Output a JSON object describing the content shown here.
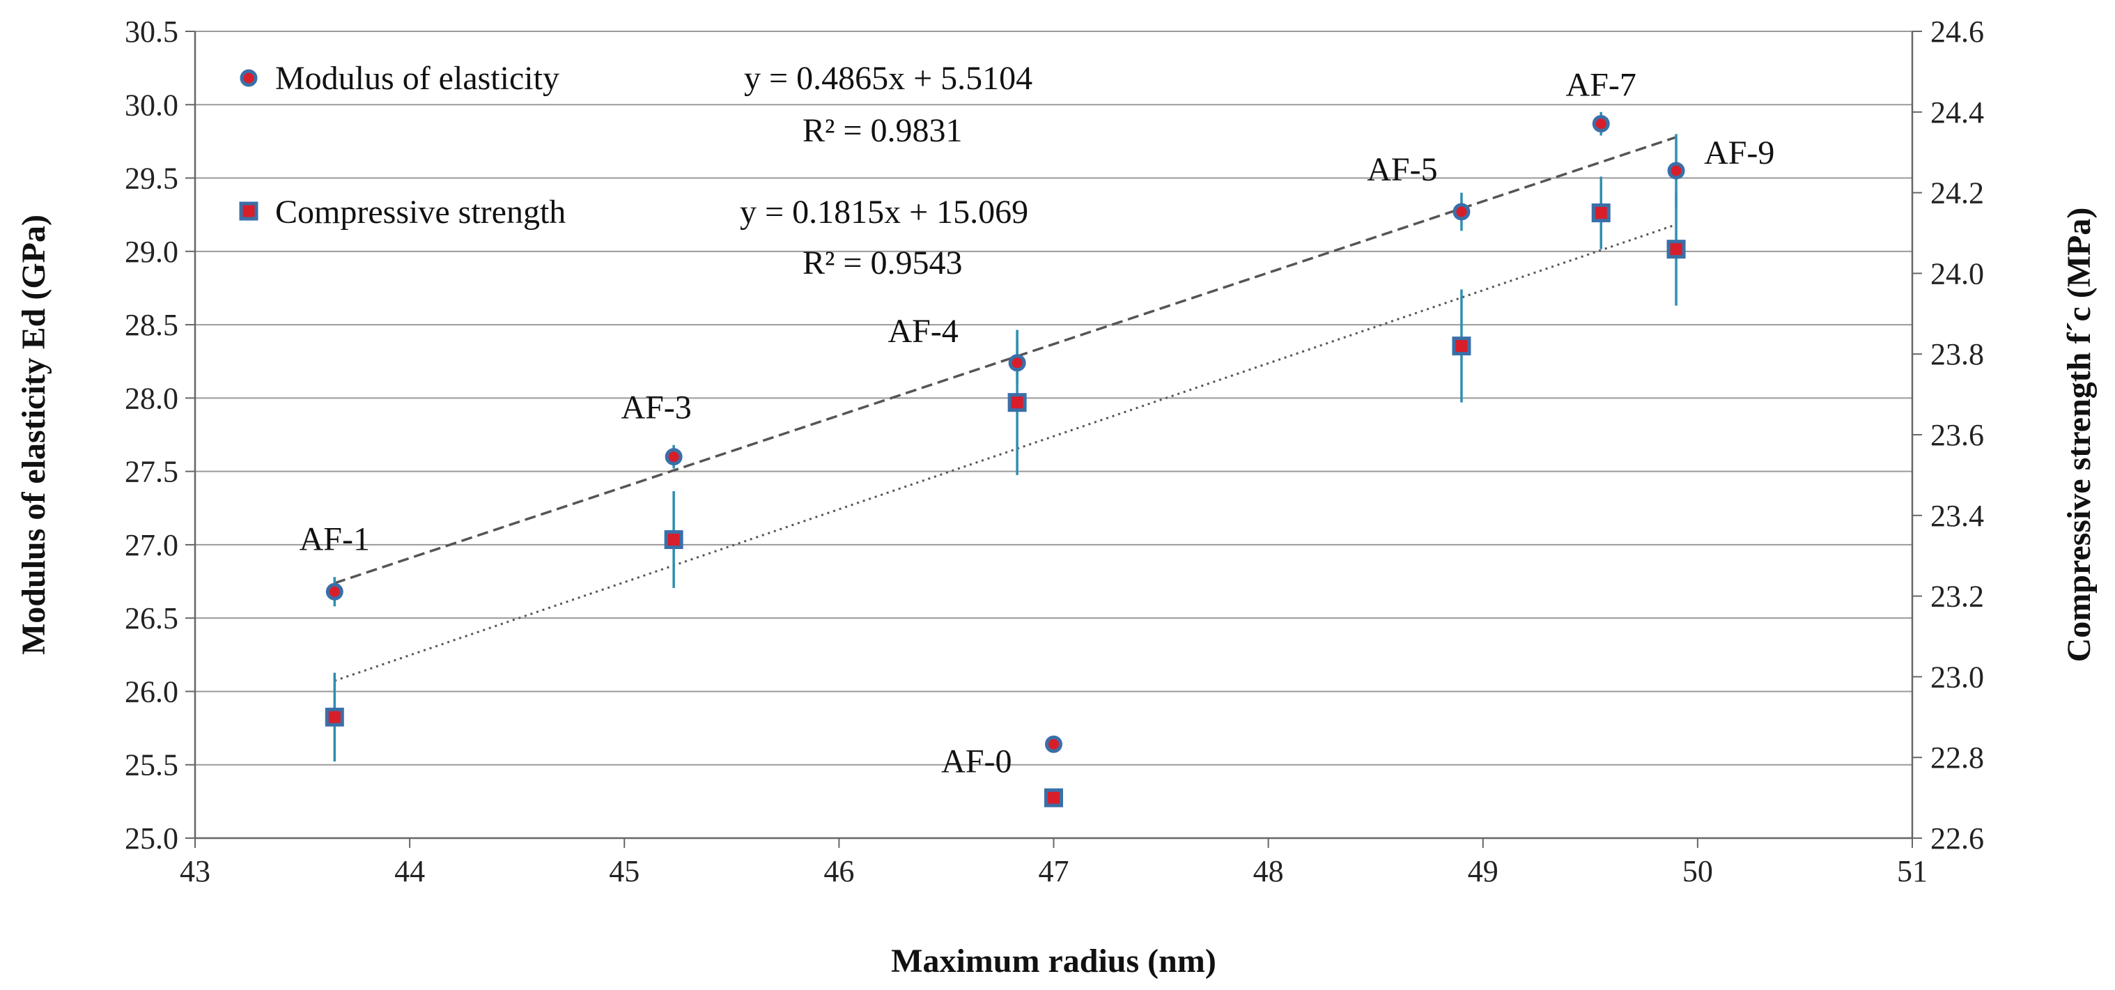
{
  "chart_data": {
    "type": "scatter",
    "xlabel": "Maximum radius (nm)",
    "ylabel": "Modulus of elasticity Ed (GPa)",
    "y2label": "Compressive strength f´c (MPa)",
    "xlim": [
      43,
      51
    ],
    "ylim": [
      25.0,
      30.5
    ],
    "y2lim": [
      22.6,
      24.6
    ],
    "x_ticks": [
      "43",
      "44",
      "45",
      "46",
      "47",
      "48",
      "49",
      "50",
      "51"
    ],
    "y_ticks": [
      "25.0",
      "25.5",
      "26.0",
      "26.5",
      "27.0",
      "27.5",
      "28.0",
      "28.5",
      "29.0",
      "29.5",
      "30.0",
      "30.5"
    ],
    "y2_ticks": [
      "22.6",
      "22.8",
      "23.0",
      "23.2",
      "23.4",
      "23.6",
      "23.8",
      "24.0",
      "24.2",
      "24.4",
      "24.6"
    ],
    "grid": "horizontal",
    "legend_position": "top-left",
    "series": [
      {
        "name": "Modulus of elasticity",
        "marker": "circle",
        "axis": "left",
        "color": "#d81e2a",
        "edge_color": "#3a6fa8",
        "x": [
          43.65,
          45.23,
          46.83,
          47.0,
          48.9,
          49.55,
          49.9
        ],
        "y": [
          26.68,
          27.6,
          28.24,
          25.64,
          29.27,
          29.87,
          29.55
        ],
        "error": [
          0.1,
          0.08,
          0.15,
          0,
          0.13,
          0.08,
          0.25
        ],
        "trendline": {
          "style": "dashed",
          "x_range": [
            43.65,
            49.9
          ],
          "equation": "y = 0.4865x + 5.5104",
          "r2": "R² = 0.9831"
        }
      },
      {
        "name": "Compressive strength",
        "marker": "square",
        "axis": "right",
        "color": "#d81e2a",
        "edge_color": "#3a6fa8",
        "x": [
          43.65,
          45.23,
          46.83,
          47.0,
          48.9,
          49.55,
          49.9
        ],
        "y": [
          22.9,
          23.34,
          23.68,
          22.7,
          23.82,
          24.15,
          24.06
        ],
        "error": [
          0.11,
          0.12,
          0.18,
          0,
          0.14,
          0.09,
          0.14
        ],
        "trendline": {
          "style": "dotted",
          "x_range": [
            43.65,
            49.9
          ],
          "equation": "y = 0.1815x + 15.069",
          "r2": "R² = 0.9543"
        }
      }
    ],
    "point_labels": [
      {
        "text": "AF-1",
        "x": 43.65
      },
      {
        "text": "AF-3",
        "x": 45.23
      },
      {
        "text": "AF-4",
        "x": 46.83
      },
      {
        "text": "AF-0",
        "x": 47.0
      },
      {
        "text": "AF-5",
        "x": 48.9
      },
      {
        "text": "AF-7",
        "x": 49.55
      },
      {
        "text": "AF-9",
        "x": 49.9
      }
    ],
    "colors": {
      "marker_fill": "#d81e2a",
      "marker_edge": "#3a6fa8",
      "error_bar": "#2e8fb0",
      "grid": "#9a9a9a",
      "trend": "#555555"
    }
  }
}
